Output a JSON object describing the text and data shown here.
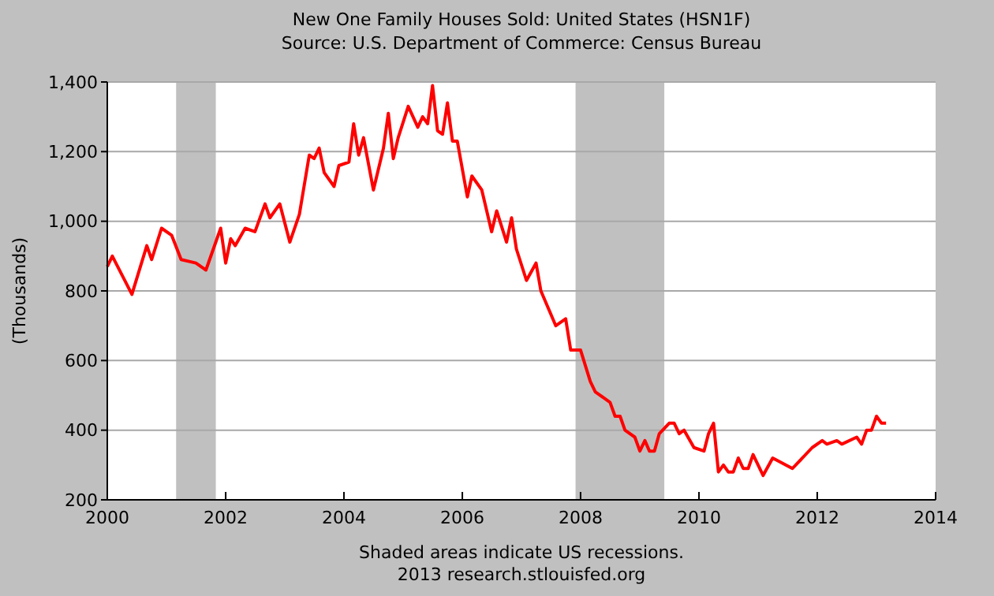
{
  "chart_data": {
    "type": "line",
    "title": "New One Family Houses Sold: United States (HSN1F)",
    "subtitle": "Source: U.S. Department of Commerce: Census Bureau",
    "ylabel": "(Thousands)",
    "x": [
      "2000-01",
      "2000-02",
      "2000-06",
      "2000-09",
      "2000-10",
      "2000-12",
      "2001-02",
      "2001-04",
      "2001-07",
      "2001-09",
      "2001-12",
      "2002-01",
      "2002-02",
      "2002-03",
      "2002-05",
      "2002-07",
      "2002-09",
      "2002-10",
      "2002-12",
      "2003-02",
      "2003-04",
      "2003-06",
      "2003-07",
      "2003-08",
      "2003-09",
      "2003-11",
      "2003-12",
      "2004-02",
      "2004-03",
      "2004-04",
      "2004-05",
      "2004-07",
      "2004-09",
      "2004-10",
      "2004-11",
      "2004-12",
      "2005-02",
      "2005-04",
      "2005-05",
      "2005-06",
      "2005-07",
      "2005-08",
      "2005-09",
      "2005-10",
      "2005-11",
      "2005-12",
      "2006-02",
      "2006-03",
      "2006-05",
      "2006-07",
      "2006-08",
      "2006-10",
      "2006-11",
      "2006-12",
      "2007-02",
      "2007-04",
      "2007-05",
      "2007-08",
      "2007-10",
      "2007-11",
      "2008-01",
      "2008-03",
      "2008-04",
      "2008-07",
      "2008-08",
      "2008-09",
      "2008-10",
      "2008-12",
      "2009-01",
      "2009-02",
      "2009-03",
      "2009-04",
      "2009-05",
      "2009-07",
      "2009-08",
      "2009-09",
      "2009-10",
      "2009-12",
      "2010-02",
      "2010-03",
      "2010-04",
      "2010-05",
      "2010-06",
      "2010-07",
      "2010-08",
      "2010-09",
      "2010-10",
      "2010-11",
      "2010-12",
      "2011-02",
      "2011-04",
      "2011-08",
      "2011-12",
      "2012-02",
      "2012-03",
      "2012-05",
      "2012-06",
      "2012-09",
      "2012-10",
      "2012-11",
      "2012-12",
      "2013-01",
      "2013-02",
      "2013-03"
    ],
    "series": [
      {
        "color": "#ff0000",
        "values": [
          870,
          900,
          790,
          930,
          890,
          980,
          960,
          890,
          880,
          860,
          980,
          880,
          950,
          930,
          980,
          970,
          1050,
          1010,
          1050,
          940,
          1020,
          1190,
          1180,
          1210,
          1140,
          1100,
          1160,
          1170,
          1280,
          1190,
          1240,
          1090,
          1210,
          1310,
          1180,
          1240,
          1330,
          1270,
          1300,
          1280,
          1390,
          1260,
          1250,
          1340,
          1230,
          1230,
          1070,
          1130,
          1090,
          970,
          1030,
          940,
          1010,
          920,
          830,
          880,
          800,
          700,
          720,
          630,
          630,
          540,
          510,
          480,
          440,
          440,
          400,
          380,
          340,
          370,
          340,
          340,
          390,
          420,
          420,
          390,
          400,
          350,
          340,
          390,
          420,
          280,
          300,
          280,
          280,
          320,
          290,
          290,
          330,
          270,
          320,
          290,
          350,
          370,
          360,
          370,
          360,
          380,
          360,
          400,
          400,
          440,
          420,
          420
        ]
      }
    ],
    "xlim": [
      "2000-01-01",
      "2014-01-01"
    ],
    "xticks": [
      "2000",
      "2002",
      "2004",
      "2006",
      "2008",
      "2010",
      "2012",
      "2014"
    ],
    "ylim": [
      200,
      1400
    ],
    "yticks": [
      {
        "value": 200,
        "label": "200"
      },
      {
        "value": 400,
        "label": "400"
      },
      {
        "value": 600,
        "label": "600"
      },
      {
        "value": 800,
        "label": "800"
      },
      {
        "value": 1000,
        "label": "1,000"
      },
      {
        "value": 1200,
        "label": "1,200"
      },
      {
        "value": 1400,
        "label": "1,400"
      }
    ],
    "grid": "y",
    "marker": "none",
    "line_style": "solid",
    "bands": [
      {
        "axis": "x",
        "from": "2001-03",
        "to": "2001-11",
        "color": "#c0c0c0"
      },
      {
        "axis": "x",
        "from": "2007-12",
        "to": "2009-06",
        "color": "#c0c0c0"
      }
    ],
    "annotations": [
      "Shaded areas indicate US recessions.",
      "2013 research.stlouisfed.org"
    ]
  }
}
